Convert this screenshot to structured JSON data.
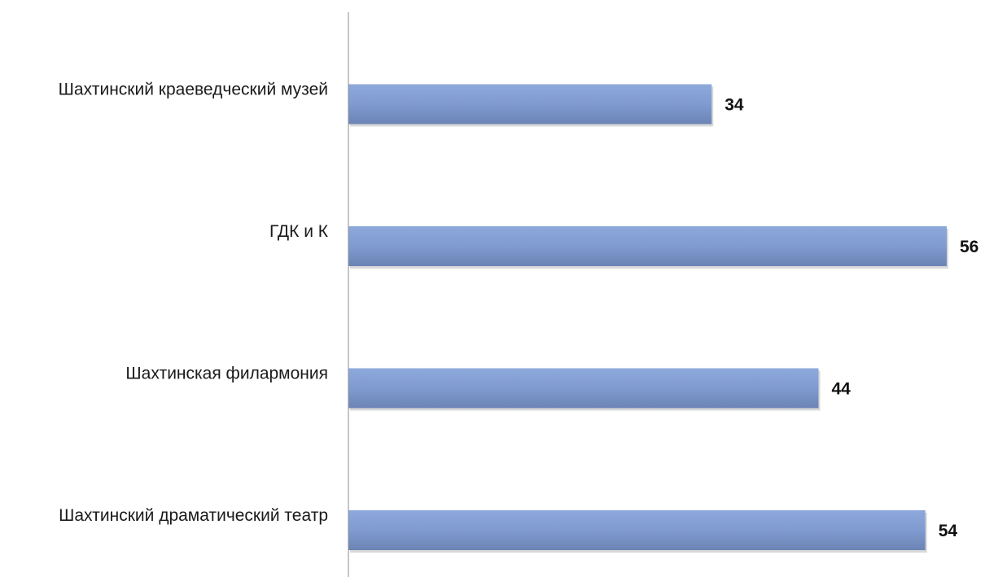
{
  "chart_data": {
    "type": "bar",
    "orientation": "horizontal",
    "categories": [
      "Шахтинский краеведческий музей",
      "ГДК и К",
      "Шахтинская филармония",
      "Шахтинский драматический театр"
    ],
    "values": [
      34,
      56,
      44,
      54
    ],
    "title": "",
    "xlabel": "",
    "ylabel": "",
    "xlim": [
      0,
      56
    ],
    "grid": false,
    "legend": "none",
    "data_labels": true,
    "colors": {
      "bar_top": "#8ea9dc",
      "bar_mid": "#7f9bcf",
      "bar_bottom": "#6c84b5",
      "bar_shadow": "#c9c9c9",
      "axis": "#8c8c8c"
    }
  }
}
